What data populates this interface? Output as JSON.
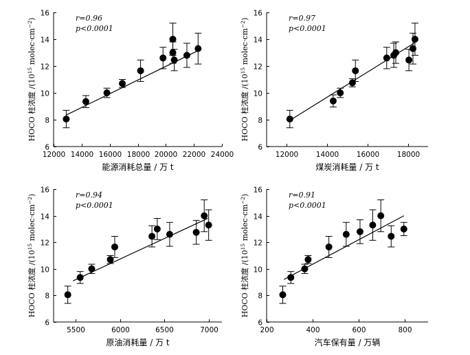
{
  "ylabel": {
    "prefix": "HOCO 柱浓度 /(10",
    "exp": "15",
    "suffix": " molec·cm",
    "exp2": "−2",
    "close": ")"
  },
  "chart_data": [
    {
      "type": "scatter",
      "id": "energy",
      "xlabel": "能源消耗总量 / 万 t",
      "xlim": [
        12000,
        24000
      ],
      "xticks": [
        12000,
        14000,
        16000,
        18000,
        20000,
        22000,
        24000
      ],
      "ylim": [
        6,
        16
      ],
      "yticks": [
        6,
        8,
        10,
        12,
        14,
        16
      ],
      "r_label": "r=0.96",
      "p_label": "p<0.0001",
      "points": [
        {
          "x": 12900,
          "y": 8.05,
          "err": 0.65
        },
        {
          "x": 14300,
          "y": 9.35,
          "err": 0.45
        },
        {
          "x": 15800,
          "y": 10.0,
          "err": 0.35
        },
        {
          "x": 16900,
          "y": 10.7,
          "err": 0.3
        },
        {
          "x": 18200,
          "y": 11.65,
          "err": 0.8
        },
        {
          "x": 19800,
          "y": 12.6,
          "err": 0.8
        },
        {
          "x": 20500,
          "y": 14.0,
          "err": 1.2
        },
        {
          "x": 20500,
          "y": 13.0,
          "err": 0.8
        },
        {
          "x": 20600,
          "y": 12.45,
          "err": 0.8
        },
        {
          "x": 21500,
          "y": 12.8,
          "err": 0.9
        },
        {
          "x": 22300,
          "y": 13.3,
          "err": 1.15
        }
      ],
      "fit": {
        "x0": 12900,
        "y0": 8.35,
        "x1": 22400,
        "y1": 13.2
      }
    },
    {
      "type": "scatter",
      "id": "coal",
      "xlabel": "煤炭消耗量 / 万 t",
      "xlim": [
        11000,
        19000
      ],
      "xticks": [
        12000,
        14000,
        16000,
        18000
      ],
      "ylim": [
        6,
        16
      ],
      "yticks": [
        6,
        8,
        10,
        12,
        14,
        16
      ],
      "r_label": "r=0.97",
      "p_label": "p<0.0001",
      "points": [
        {
          "x": 12150,
          "y": 8.05,
          "err": 0.65
        },
        {
          "x": 14300,
          "y": 9.4,
          "err": 0.45
        },
        {
          "x": 14650,
          "y": 10.0,
          "err": 0.35
        },
        {
          "x": 15250,
          "y": 10.75,
          "err": 0.3
        },
        {
          "x": 15400,
          "y": 11.65,
          "err": 0.8
        },
        {
          "x": 16950,
          "y": 12.6,
          "err": 0.8
        },
        {
          "x": 17300,
          "y": 12.8,
          "err": 0.9
        },
        {
          "x": 17400,
          "y": 13.0,
          "err": 0.8
        },
        {
          "x": 18050,
          "y": 12.45,
          "err": 0.8
        },
        {
          "x": 18250,
          "y": 13.3,
          "err": 1.15
        },
        {
          "x": 18350,
          "y": 14.0,
          "err": 1.2
        }
      ],
      "fit": {
        "x0": 12150,
        "y0": 7.95,
        "x1": 18350,
        "y1": 13.75
      }
    },
    {
      "type": "scatter",
      "id": "oil",
      "xlabel": "原油消耗量 / 万 t",
      "xlim": [
        5250,
        7150
      ],
      "xticks": [
        5500,
        6000,
        6500,
        7000
      ],
      "ylim": [
        6,
        16
      ],
      "yticks": [
        6,
        8,
        10,
        12,
        14,
        16
      ],
      "r_label": "r=0.94",
      "p_label": "p<0.0001",
      "points": [
        {
          "x": 5410,
          "y": 8.05,
          "err": 0.65
        },
        {
          "x": 5550,
          "y": 9.35,
          "err": 0.45
        },
        {
          "x": 5680,
          "y": 10.0,
          "err": 0.35
        },
        {
          "x": 5890,
          "y": 10.7,
          "err": 0.3
        },
        {
          "x": 5940,
          "y": 11.65,
          "err": 0.8
        },
        {
          "x": 6360,
          "y": 12.45,
          "err": 0.8
        },
        {
          "x": 6420,
          "y": 13.0,
          "err": 0.8
        },
        {
          "x": 6560,
          "y": 12.6,
          "err": 0.9
        },
        {
          "x": 6860,
          "y": 12.75,
          "err": 0.9
        },
        {
          "x": 6950,
          "y": 14.0,
          "err": 1.2
        },
        {
          "x": 7000,
          "y": 13.3,
          "err": 1.15
        }
      ],
      "fit": {
        "x0": 5470,
        "y0": 9.1,
        "x1": 6990,
        "y1": 13.8
      }
    },
    {
      "type": "scatter",
      "id": "vehicle",
      "xlabel": "汽车保有量 / 万辆",
      "xlim": [
        200,
        900
      ],
      "xticks": [
        200,
        400,
        600,
        800
      ],
      "ylim": [
        6,
        16
      ],
      "yticks": [
        6,
        8,
        10,
        12,
        14,
        16
      ],
      "r_label": "r=0.91",
      "p_label": "p<0.0001",
      "points": [
        {
          "x": 270,
          "y": 8.05,
          "err": 0.65
        },
        {
          "x": 305,
          "y": 9.35,
          "err": 0.45
        },
        {
          "x": 365,
          "y": 10.0,
          "err": 0.35
        },
        {
          "x": 380,
          "y": 10.7,
          "err": 0.3
        },
        {
          "x": 470,
          "y": 11.65,
          "err": 0.8
        },
        {
          "x": 545,
          "y": 12.6,
          "err": 0.9
        },
        {
          "x": 605,
          "y": 12.8,
          "err": 0.9
        },
        {
          "x": 660,
          "y": 13.3,
          "err": 1.15
        },
        {
          "x": 695,
          "y": 14.0,
          "err": 1.2
        },
        {
          "x": 740,
          "y": 12.45,
          "err": 0.8
        },
        {
          "x": 795,
          "y": 13.0,
          "err": 0.5
        }
      ],
      "fit": {
        "x0": 275,
        "y0": 9.2,
        "x1": 795,
        "y1": 14.0
      }
    }
  ]
}
